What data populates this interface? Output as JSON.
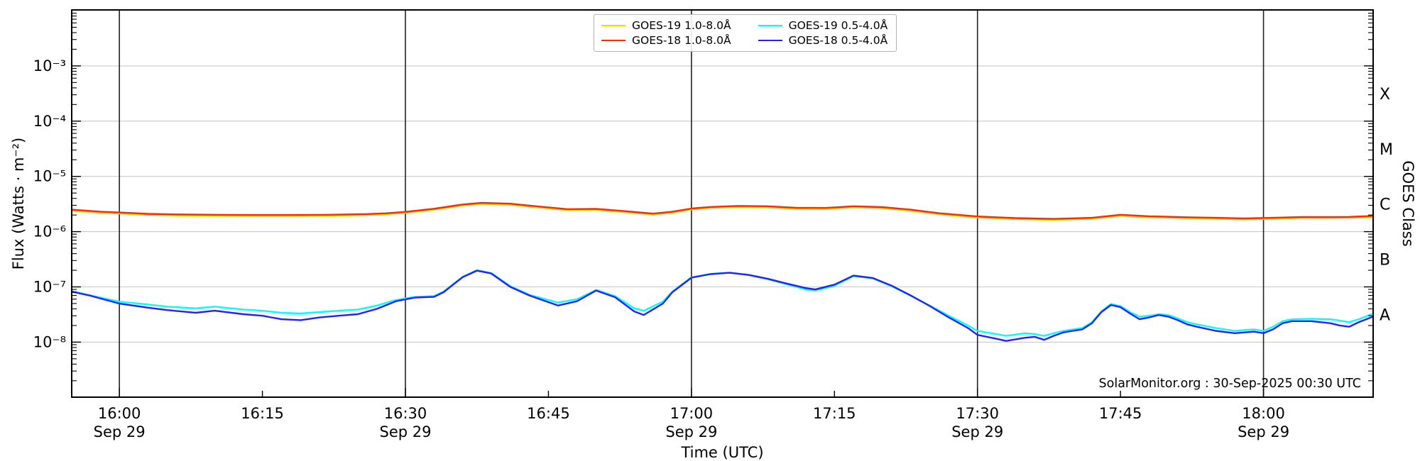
{
  "figure": {
    "xlabel": "Time (UTC)",
    "ylabel_left": "Flux (Watts · m⁻²)",
    "ylabel_right": "GOES Class",
    "footer_credit": "SolarMonitor.org : 30-Sep-2025 00:30 UTC"
  },
  "colors": {
    "goes19_long": "#ffd400",
    "goes18_long": "#ff2a00",
    "goes19_short": "#00ffff",
    "goes18_short": "#2222ff",
    "gridline": "#c9c9c9",
    "time_divider": "#222222",
    "axis": "#000000"
  },
  "chart_data": {
    "type": "line",
    "title": "",
    "xlabel": "Time (UTC)",
    "ylabel": "Flux (Watts · m⁻²)",
    "ylabel_right": "GOES Class",
    "y_axis": {
      "scale": "log",
      "min": 1e-09,
      "max": 0.01,
      "unit": "W m^-2",
      "ticks": [
        {
          "exponent": -3,
          "label": "10⁻³"
        },
        {
          "exponent": -4,
          "label": "10⁻⁴"
        },
        {
          "exponent": -5,
          "label": "10⁻⁵"
        },
        {
          "exponent": -6,
          "label": "10⁻⁶"
        },
        {
          "exponent": -7,
          "label": "10⁻⁷"
        },
        {
          "exponent": -8,
          "label": "10⁻⁸"
        }
      ]
    },
    "goes_class_labels": [
      {
        "label": "X",
        "flux": 0.000316
      },
      {
        "label": "M",
        "flux": 3.16e-05
      },
      {
        "label": "C",
        "flux": 3.16e-06
      },
      {
        "label": "B",
        "flux": 3.16e-07
      },
      {
        "label": "A",
        "flux": 3.16e-08
      }
    ],
    "x_axis": {
      "date": "Sep 29",
      "start_minutes_after_1600": -5,
      "end_minutes_after_1600": 131.5,
      "ticks": [
        {
          "t": 0,
          "label": "16:00",
          "date": "Sep 29"
        },
        {
          "t": 15,
          "label": "16:15"
        },
        {
          "t": 30,
          "label": "16:30",
          "date": "Sep 29"
        },
        {
          "t": 45,
          "label": "16:45"
        },
        {
          "t": 60,
          "label": "17:00",
          "date": "Sep 29"
        },
        {
          "t": 75,
          "label": "17:15"
        },
        {
          "t": 90,
          "label": "17:30",
          "date": "Sep 29"
        },
        {
          "t": 105,
          "label": "17:45"
        },
        {
          "t": 120,
          "label": "18:00",
          "date": "Sep 29"
        }
      ],
      "divider_line_times": [
        0,
        30,
        60,
        90,
        120
      ]
    },
    "series": [
      {
        "name": "GOES-19 1.0-8.0Å",
        "color_key": "goes19_long",
        "t_minutes_after_1600": [
          -5,
          -2,
          0,
          3,
          6,
          10,
          14,
          18,
          22,
          26,
          28,
          30,
          33,
          36,
          38,
          41,
          44,
          47,
          50,
          53,
          56,
          58,
          60,
          62,
          65,
          68,
          71,
          74,
          77,
          80,
          83,
          86,
          90,
          94,
          98,
          102,
          105,
          108,
          110,
          112,
          115,
          118,
          121,
          124,
          127,
          129,
          131.5
        ],
        "flux": [
          2.4e-06,
          2.21e-06,
          2.13e-06,
          2.02e-06,
          1.97e-06,
          1.94e-06,
          1.92e-06,
          1.92e-06,
          1.94e-06,
          2e-06,
          2.06e-06,
          2.19e-06,
          2.5e-06,
          2.98e-06,
          3.19e-06,
          3.07e-06,
          2.74e-06,
          2.45e-06,
          2.48e-06,
          2.26e-06,
          2.04e-06,
          2.21e-06,
          2.52e-06,
          2.69e-06,
          2.8e-06,
          2.76e-06,
          2.59e-06,
          2.57e-06,
          2.76e-06,
          2.67e-06,
          2.4e-06,
          2.06e-06,
          1.8e-06,
          1.69e-06,
          1.63e-06,
          1.71e-06,
          1.94e-06,
          1.82e-06,
          1.79e-06,
          1.75e-06,
          1.71e-06,
          1.67e-06,
          1.71e-06,
          1.77e-06,
          1.77e-06,
          1.78e-06,
          1.84e-06
        ]
      },
      {
        "name": "GOES-18 1.0-8.0Å",
        "color_key": "goes18_long",
        "t_minutes_after_1600": [
          -5,
          -2,
          0,
          3,
          6,
          10,
          14,
          18,
          22,
          26,
          28,
          30,
          33,
          36,
          38,
          41,
          44,
          47,
          50,
          53,
          56,
          58,
          60,
          62,
          65,
          68,
          71,
          74,
          77,
          80,
          83,
          86,
          90,
          94,
          98,
          102,
          105,
          108,
          110,
          112,
          115,
          118,
          121,
          124,
          127,
          129,
          131.5
        ],
        "flux": [
          2.5e-06,
          2.3e-06,
          2.22e-06,
          2.1e-06,
          2.05e-06,
          2.02e-06,
          2e-06,
          2e-06,
          2.02e-06,
          2.08e-06,
          2.15e-06,
          2.28e-06,
          2.6e-06,
          3.1e-06,
          3.32e-06,
          3.2e-06,
          2.85e-06,
          2.55e-06,
          2.58e-06,
          2.35e-06,
          2.12e-06,
          2.3e-06,
          2.62e-06,
          2.8e-06,
          2.92e-06,
          2.88e-06,
          2.7e-06,
          2.68e-06,
          2.88e-06,
          2.78e-06,
          2.5e-06,
          2.15e-06,
          1.88e-06,
          1.76e-06,
          1.7e-06,
          1.78e-06,
          2.02e-06,
          1.9e-06,
          1.86e-06,
          1.82e-06,
          1.78e-06,
          1.74e-06,
          1.78e-06,
          1.84e-06,
          1.84e-06,
          1.85e-06,
          1.92e-06
        ]
      },
      {
        "name": "GOES-19 0.5-4.0Å",
        "color_key": "goes19_short",
        "t_minutes_after_1600": [
          -5,
          -3,
          0,
          3,
          5,
          8,
          10,
          13,
          15,
          17,
          19,
          21,
          23,
          25,
          27,
          29,
          31,
          33,
          34,
          36,
          37.5,
          39,
          41,
          43,
          46,
          48,
          50,
          52,
          54,
          55,
          57,
          58,
          60,
          62,
          64,
          66,
          68,
          70,
          72,
          73,
          75,
          77,
          79,
          81,
          83,
          85,
          87,
          89,
          90,
          92,
          93,
          95,
          96,
          97,
          98,
          99,
          100,
          101,
          102,
          103,
          104,
          105,
          106,
          107,
          108,
          109,
          110,
          111,
          112,
          113,
          115,
          117,
          119,
          120,
          121,
          122,
          123,
          125,
          127,
          128,
          129,
          130,
          131.5
        ],
        "flux": [
          8.4e-08,
          7e-08,
          5.4e-08,
          4.8e-08,
          4.4e-08,
          4.1e-08,
          4.4e-08,
          3.9e-08,
          3.7e-08,
          3.4e-08,
          3.3e-08,
          3.5e-08,
          3.7e-08,
          3.9e-08,
          4.6e-08,
          5.8e-08,
          6.6e-08,
          6.8e-08,
          8.2e-08,
          1.52e-07,
          2e-07,
          1.78e-07,
          1.03e-07,
          7.2e-08,
          5.2e-08,
          6e-08,
          8.8e-08,
          6.8e-08,
          4.1e-08,
          3.7e-08,
          5.4e-08,
          8.2e-08,
          1.49e-07,
          1.72e-07,
          1.81e-07,
          1.64e-07,
          1.38e-07,
          1.12e-07,
          9e-08,
          8.6e-08,
          1.05e-07,
          1.57e-07,
          1.43e-07,
          1.03e-07,
          6.9e-08,
          4.6e-08,
          3e-08,
          2e-08,
          1.6e-08,
          1.4e-08,
          1.3e-08,
          1.45e-08,
          1.4e-08,
          1.3e-08,
          1.45e-08,
          1.6e-08,
          1.7e-08,
          1.8e-08,
          2.3e-08,
          3.6e-08,
          4.9e-08,
          4.5e-08,
          3.5e-08,
          2.9e-08,
          3e-08,
          3.2e-08,
          3.1e-08,
          2.7e-08,
          2.3e-08,
          2.1e-08,
          1.8e-08,
          1.6e-08,
          1.7e-08,
          1.6e-08,
          1.9e-08,
          2.4e-08,
          2.6e-08,
          2.65e-08,
          2.6e-08,
          2.45e-08,
          2.3e-08,
          2.6e-08,
          3.3e-08
        ]
      },
      {
        "name": "GOES-18 0.5-4.0Å",
        "color_key": "goes18_short",
        "t_minutes_after_1600": [
          -5,
          -3,
          0,
          3,
          5,
          8,
          10,
          13,
          15,
          17,
          19,
          21,
          23,
          25,
          27,
          29,
          31,
          33,
          34,
          36,
          37.5,
          39,
          41,
          43,
          46,
          48,
          50,
          52,
          54,
          55,
          57,
          58,
          60,
          62,
          64,
          66,
          68,
          70,
          72,
          73,
          75,
          77,
          79,
          81,
          83,
          85,
          87,
          89,
          90,
          92,
          93,
          95,
          96,
          97,
          98,
          99,
          100,
          101,
          102,
          103,
          104,
          105,
          106,
          107,
          108,
          109,
          110,
          111,
          112,
          113,
          115,
          117,
          119,
          120,
          121,
          122,
          123,
          125,
          127,
          128,
          129,
          130,
          131.5
        ],
        "flux": [
          8.2e-08,
          6.9e-08,
          5e-08,
          4.2e-08,
          3.8e-08,
          3.4e-08,
          3.7e-08,
          3.2e-08,
          3e-08,
          2.6e-08,
          2.5e-08,
          2.8e-08,
          3e-08,
          3.2e-08,
          4e-08,
          5.5e-08,
          6.4e-08,
          6.6e-08,
          8e-08,
          1.5e-07,
          1.97e-07,
          1.75e-07,
          1e-07,
          7e-08,
          4.6e-08,
          5.5e-08,
          8.6e-08,
          6.5e-08,
          3.6e-08,
          3.1e-08,
          5e-08,
          8e-08,
          1.47e-07,
          1.7e-07,
          1.8e-07,
          1.65e-07,
          1.4e-07,
          1.15e-07,
          9.5e-08,
          9e-08,
          1.1e-07,
          1.6e-07,
          1.45e-07,
          1.05e-07,
          7e-08,
          4.5e-08,
          2.8e-08,
          1.8e-08,
          1.35e-08,
          1.15e-08,
          1.05e-08,
          1.2e-08,
          1.25e-08,
          1.1e-08,
          1.3e-08,
          1.5e-08,
          1.6e-08,
          1.7e-08,
          2.2e-08,
          3.5e-08,
          4.7e-08,
          4.3e-08,
          3.3e-08,
          2.6e-08,
          2.8e-08,
          3.1e-08,
          2.9e-08,
          2.5e-08,
          2.1e-08,
          1.9e-08,
          1.6e-08,
          1.45e-08,
          1.55e-08,
          1.45e-08,
          1.7e-08,
          2.2e-08,
          2.4e-08,
          2.4e-08,
          2.2e-08,
          2e-08,
          1.9e-08,
          2.3e-08,
          2.9e-08
        ]
      }
    ],
    "annotation": "SolarMonitor.org : 30-Sep-2025 00:30 UTC",
    "legend_position": "top-center",
    "grid": "horizontal-decades"
  }
}
